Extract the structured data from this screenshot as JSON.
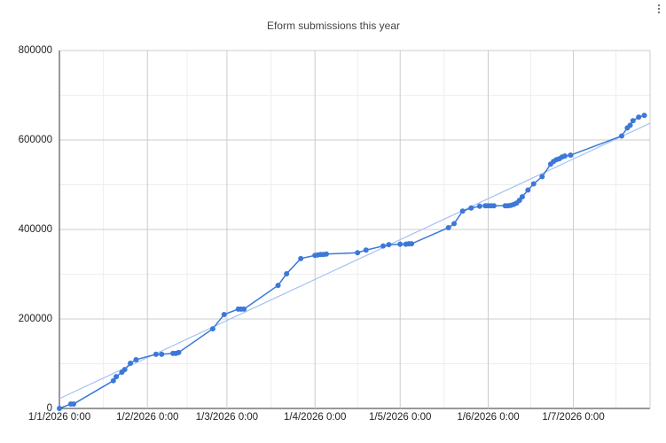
{
  "chart_data": {
    "type": "line",
    "title": "Eform submissions this year",
    "x": [
      "2026-01-01",
      "2026-01-05",
      "2026-01-06",
      "2026-01-20",
      "2026-01-21",
      "2026-01-23",
      "2026-01-24",
      "2026-01-26",
      "2026-01-28",
      "2026-02-04",
      "2026-02-06",
      "2026-02-10",
      "2026-02-11",
      "2026-02-12",
      "2026-02-24",
      "2026-02-28",
      "2026-03-05",
      "2026-03-06",
      "2026-03-07",
      "2026-03-19",
      "2026-03-22",
      "2026-03-27",
      "2026-04-01",
      "2026-04-02",
      "2026-04-03",
      "2026-04-04",
      "2026-04-05",
      "2026-04-16",
      "2026-04-19",
      "2026-04-25",
      "2026-04-27",
      "2026-05-01",
      "2026-05-03",
      "2026-05-04",
      "2026-05-05",
      "2026-05-18",
      "2026-05-20",
      "2026-05-23",
      "2026-05-26",
      "2026-05-29",
      "2026-05-31",
      "2026-06-01",
      "2026-06-02",
      "2026-06-03",
      "2026-06-07",
      "2026-06-08",
      "2026-06-09",
      "2026-06-10",
      "2026-06-11",
      "2026-06-12",
      "2026-06-13",
      "2026-06-15",
      "2026-06-17",
      "2026-06-20",
      "2026-06-23",
      "2026-06-24",
      "2026-06-25",
      "2026-06-26",
      "2026-06-27",
      "2026-06-28",
      "2026-06-30",
      "2026-07-18",
      "2026-07-20",
      "2026-07-21",
      "2026-07-22",
      "2026-07-24",
      "2026-07-26"
    ],
    "values": [
      0,
      10000,
      10000,
      62000,
      71000,
      81000,
      87000,
      101000,
      109000,
      121000,
      121000,
      123000,
      123000,
      125000,
      178000,
      210000,
      222000,
      222000,
      222000,
      275000,
      301000,
      335000,
      342000,
      343000,
      344000,
      344000,
      345000,
      348000,
      354000,
      363000,
      366000,
      367000,
      367000,
      368000,
      368000,
      404000,
      413000,
      441000,
      448000,
      452000,
      453000,
      453000,
      453000,
      453000,
      453000,
      453000,
      454000,
      456000,
      459000,
      465000,
      473000,
      488000,
      502000,
      518000,
      546000,
      552000,
      556000,
      558000,
      562000,
      564000,
      566000,
      609000,
      627000,
      633000,
      643000,
      651000,
      655000
    ],
    "color": "#3c78d8",
    "trendline": true,
    "trendline_color": "#a4c2f4",
    "xlim": [
      "2026-01-01",
      "2026-07-28"
    ],
    "xticks": [
      {
        "value": "2026-01-01",
        "label": "1/1/2026 0:00"
      },
      {
        "value": "2026-02-01",
        "label": "1/2/2026 0:00"
      },
      {
        "value": "2026-03-01",
        "label": "1/3/2026 0:00"
      },
      {
        "value": "2026-04-01",
        "label": "1/4/2026 0:00"
      },
      {
        "value": "2026-05-01",
        "label": "1/5/2026 0:00"
      },
      {
        "value": "2026-06-01",
        "label": "1/6/2026 0:00"
      },
      {
        "value": "2026-07-01",
        "label": "1/7/2026 0:00"
      }
    ],
    "ylim": [
      0,
      800000
    ],
    "yticks": [
      0,
      200000,
      400000,
      600000,
      800000
    ],
    "grid": true,
    "minor_grid": true
  }
}
